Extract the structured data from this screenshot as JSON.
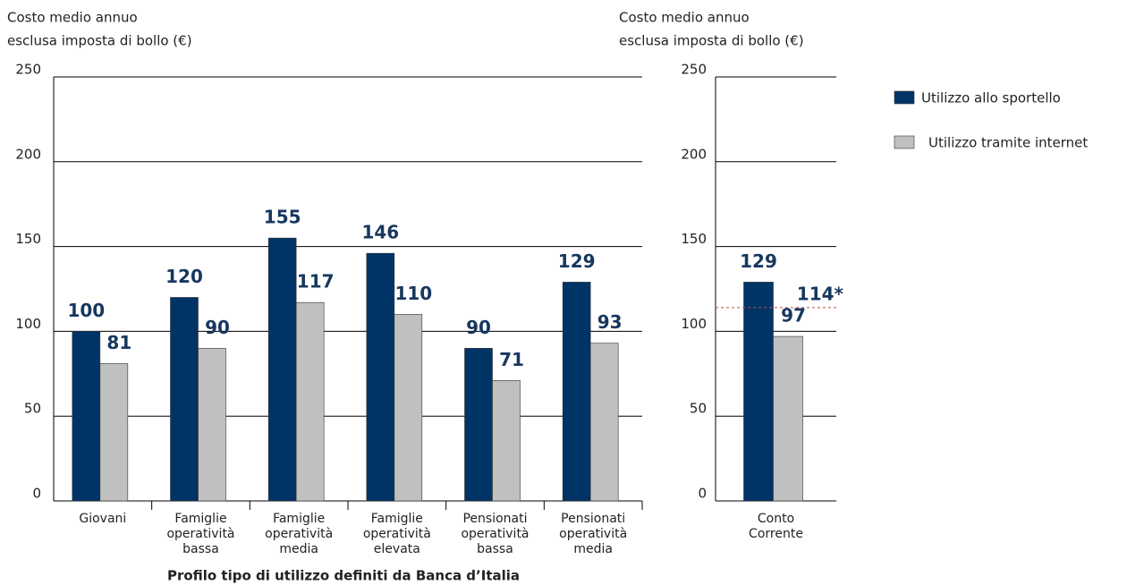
{
  "chart_data": [
    {
      "type": "bar",
      "ylabel": [
        "Costo medio annuo",
        "esclusa imposta di bollo (€)"
      ],
      "xlabel": "Profilo tipo di utilizzo definiti da Banca d’Italia",
      "categories": [
        "Giovani",
        "Famiglie operatività bassa",
        "Famiglie operatività media",
        "Famiglie operatività elevata",
        "Pensionati operatività bassa",
        "Pensionati operatività media"
      ],
      "series": [
        {
          "name": "Utilizzo allo sportello",
          "color": "#003366",
          "values": [
            100,
            120,
            155,
            146,
            90,
            129
          ]
        },
        {
          "name": "Utilizzo tramite internet",
          "color": "#c0c0c0",
          "values": [
            81,
            90,
            117,
            110,
            71,
            93
          ]
        }
      ],
      "ylim": [
        0,
        250
      ],
      "yticks": [
        0,
        50,
        100,
        150,
        200,
        250
      ],
      "grid": true
    },
    {
      "type": "bar",
      "ylabel": [
        "Costo medio annuo",
        "esclusa imposta di bollo (€)"
      ],
      "categories": [
        "Conto Corrente"
      ],
      "series": [
        {
          "name": "Utilizzo allo sportello",
          "color": "#003366",
          "values": [
            129
          ]
        },
        {
          "name": "Utilizzo tramite internet",
          "color": "#c0c0c0",
          "values": [
            97
          ]
        }
      ],
      "reference_line": {
        "value": 114,
        "label": "114*",
        "color": "#c0504d"
      },
      "ylim": [
        0,
        250
      ],
      "yticks": [
        0,
        50,
        100,
        150,
        200,
        250
      ],
      "grid": true,
      "legend": "upper right"
    }
  ]
}
